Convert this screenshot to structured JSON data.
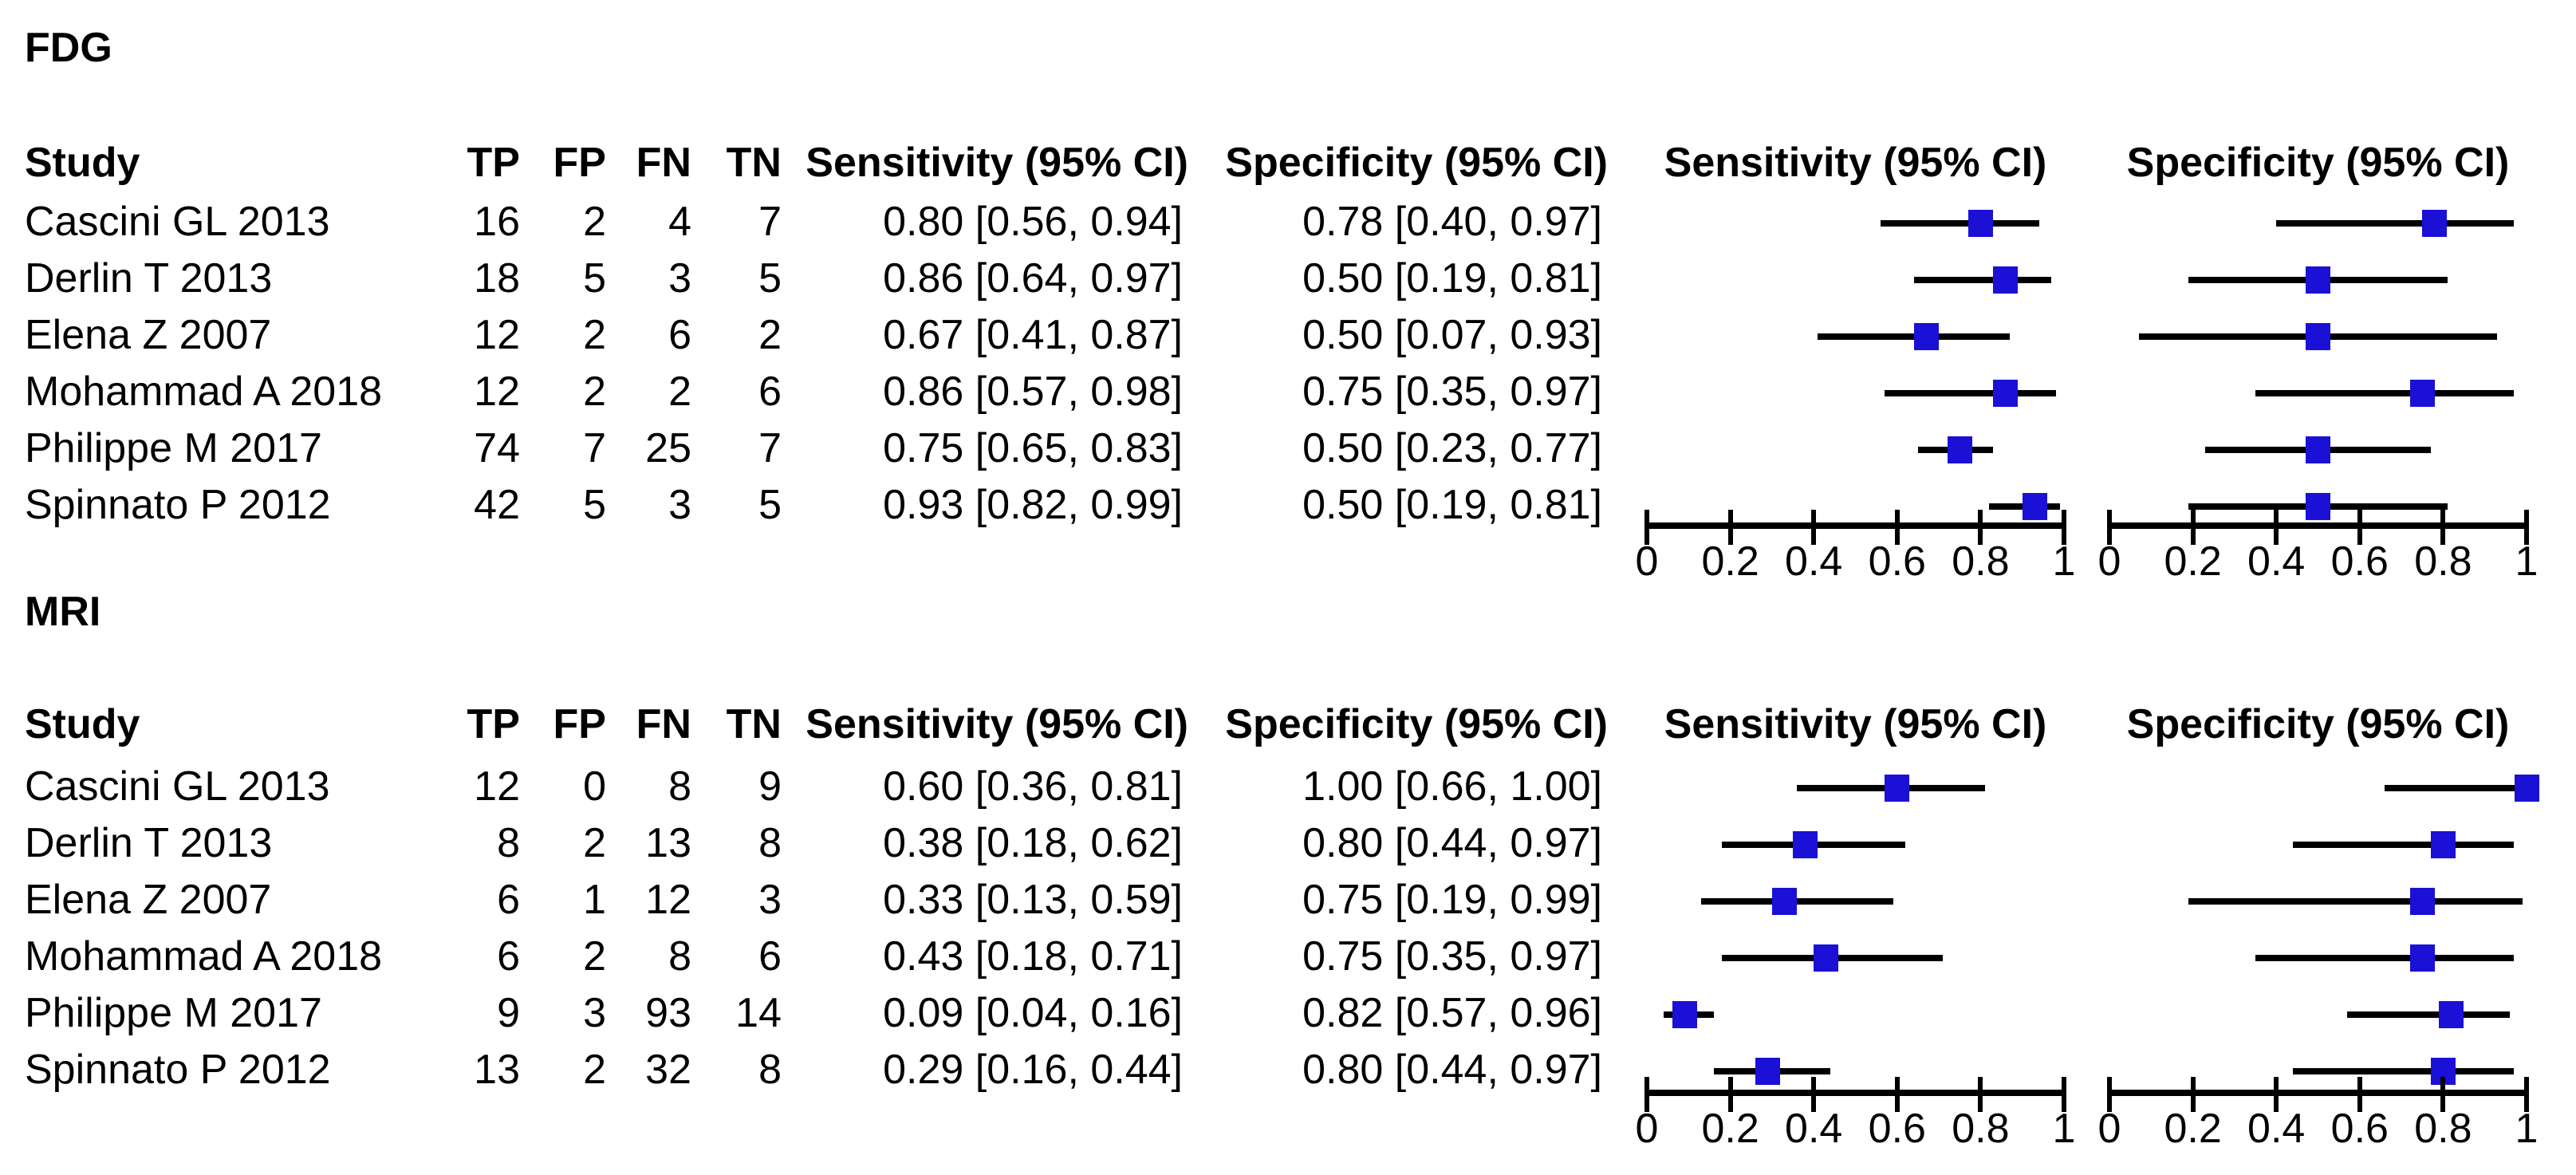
{
  "colors": {
    "marker": "#1A10D6",
    "line": "#000000",
    "text": "#000000",
    "background": "#FFFFFF"
  },
  "chart_data": [
    {
      "type": "forest",
      "title": "FDG",
      "columns": {
        "study": "Study",
        "tp": "TP",
        "fp": "FP",
        "fn": "FN",
        "tn": "TN",
        "sens": "Sensitivity (95% CI)",
        "spec": "Specificity (95% CI)"
      },
      "plot_headers": {
        "sens": "Sensitivity (95% CI)",
        "spec": "Specificity (95% CI)"
      },
      "axis": {
        "min": 0,
        "max": 1,
        "tick_labels": [
          "0",
          "0.2",
          "0.4",
          "0.6",
          "0.8",
          "1"
        ]
      },
      "rows": [
        {
          "study": "Cascini GL 2013",
          "tp": 16,
          "fp": 2,
          "fn": 4,
          "tn": 7,
          "sens_label": "0.80 [0.56, 0.94]",
          "sens": {
            "est": 0.8,
            "lo": 0.56,
            "hi": 0.94
          },
          "spec_label": "0.78 [0.40, 0.97]",
          "spec": {
            "est": 0.78,
            "lo": 0.4,
            "hi": 0.97
          }
        },
        {
          "study": "Derlin T 2013",
          "tp": 18,
          "fp": 5,
          "fn": 3,
          "tn": 5,
          "sens_label": "0.86 [0.64, 0.97]",
          "sens": {
            "est": 0.86,
            "lo": 0.64,
            "hi": 0.97
          },
          "spec_label": "0.50 [0.19, 0.81]",
          "spec": {
            "est": 0.5,
            "lo": 0.19,
            "hi": 0.81
          }
        },
        {
          "study": "Elena Z 2007",
          "tp": 12,
          "fp": 2,
          "fn": 6,
          "tn": 2,
          "sens_label": "0.67 [0.41, 0.87]",
          "sens": {
            "est": 0.67,
            "lo": 0.41,
            "hi": 0.87
          },
          "spec_label": "0.50 [0.07, 0.93]",
          "spec": {
            "est": 0.5,
            "lo": 0.07,
            "hi": 0.93
          }
        },
        {
          "study": "Mohammad A 2018",
          "tp": 12,
          "fp": 2,
          "fn": 2,
          "tn": 6,
          "sens_label": "0.86 [0.57, 0.98]",
          "sens": {
            "est": 0.86,
            "lo": 0.57,
            "hi": 0.98
          },
          "spec_label": "0.75 [0.35, 0.97]",
          "spec": {
            "est": 0.75,
            "lo": 0.35,
            "hi": 0.97
          }
        },
        {
          "study": "Philippe M 2017",
          "tp": 74,
          "fp": 7,
          "fn": 25,
          "tn": 7,
          "sens_label": "0.75 [0.65, 0.83]",
          "sens": {
            "est": 0.75,
            "lo": 0.65,
            "hi": 0.83
          },
          "spec_label": "0.50 [0.23, 0.77]",
          "spec": {
            "est": 0.5,
            "lo": 0.23,
            "hi": 0.77
          }
        },
        {
          "study": "Spinnato P 2012",
          "tp": 42,
          "fp": 5,
          "fn": 3,
          "tn": 5,
          "sens_label": "0.93 [0.82, 0.99]",
          "sens": {
            "est": 0.93,
            "lo": 0.82,
            "hi": 0.99
          },
          "spec_label": "0.50 [0.19, 0.81]",
          "spec": {
            "est": 0.5,
            "lo": 0.19,
            "hi": 0.81
          }
        }
      ]
    },
    {
      "type": "forest",
      "title": "MRI",
      "columns": {
        "study": "Study",
        "tp": "TP",
        "fp": "FP",
        "fn": "FN",
        "tn": "TN",
        "sens": "Sensitivity (95% CI)",
        "spec": "Specificity (95% CI)"
      },
      "plot_headers": {
        "sens": "Sensitivity (95% CI)",
        "spec": "Specificity (95% CI)"
      },
      "axis": {
        "min": 0,
        "max": 1,
        "tick_labels": [
          "0",
          "0.2",
          "0.4",
          "0.6",
          "0.8",
          "1"
        ]
      },
      "rows": [
        {
          "study": "Cascini GL 2013",
          "tp": 12,
          "fp": 0,
          "fn": 8,
          "tn": 9,
          "sens_label": "0.60 [0.36, 0.81]",
          "sens": {
            "est": 0.6,
            "lo": 0.36,
            "hi": 0.81
          },
          "spec_label": "1.00 [0.66, 1.00]",
          "spec": {
            "est": 1.0,
            "lo": 0.66,
            "hi": 1.0
          }
        },
        {
          "study": "Derlin T 2013",
          "tp": 8,
          "fp": 2,
          "fn": 13,
          "tn": 8,
          "sens_label": "0.38 [0.18, 0.62]",
          "sens": {
            "est": 0.38,
            "lo": 0.18,
            "hi": 0.62
          },
          "spec_label": "0.80 [0.44, 0.97]",
          "spec": {
            "est": 0.8,
            "lo": 0.44,
            "hi": 0.97
          }
        },
        {
          "study": "Elena Z 2007",
          "tp": 6,
          "fp": 1,
          "fn": 12,
          "tn": 3,
          "sens_label": "0.33 [0.13, 0.59]",
          "sens": {
            "est": 0.33,
            "lo": 0.13,
            "hi": 0.59
          },
          "spec_label": "0.75 [0.19, 0.99]",
          "spec": {
            "est": 0.75,
            "lo": 0.19,
            "hi": 0.99
          }
        },
        {
          "study": "Mohammad A 2018",
          "tp": 6,
          "fp": 2,
          "fn": 8,
          "tn": 6,
          "sens_label": "0.43 [0.18, 0.71]",
          "sens": {
            "est": 0.43,
            "lo": 0.18,
            "hi": 0.71
          },
          "spec_label": "0.75 [0.35, 0.97]",
          "spec": {
            "est": 0.75,
            "lo": 0.35,
            "hi": 0.97
          }
        },
        {
          "study": "Philippe M 2017",
          "tp": 9,
          "fp": 3,
          "fn": 93,
          "tn": 14,
          "sens_label": "0.09 [0.04, 0.16]",
          "sens": {
            "est": 0.09,
            "lo": 0.04,
            "hi": 0.16
          },
          "spec_label": "0.82 [0.57, 0.96]",
          "spec": {
            "est": 0.82,
            "lo": 0.57,
            "hi": 0.96
          }
        },
        {
          "study": "Spinnato P 2012",
          "tp": 13,
          "fp": 2,
          "fn": 32,
          "tn": 8,
          "sens_label": "0.29 [0.16, 0.44]",
          "sens": {
            "est": 0.29,
            "lo": 0.16,
            "hi": 0.44
          },
          "spec_label": "0.80 [0.44, 0.97]",
          "spec": {
            "est": 0.8,
            "lo": 0.44,
            "hi": 0.97
          }
        }
      ]
    }
  ]
}
